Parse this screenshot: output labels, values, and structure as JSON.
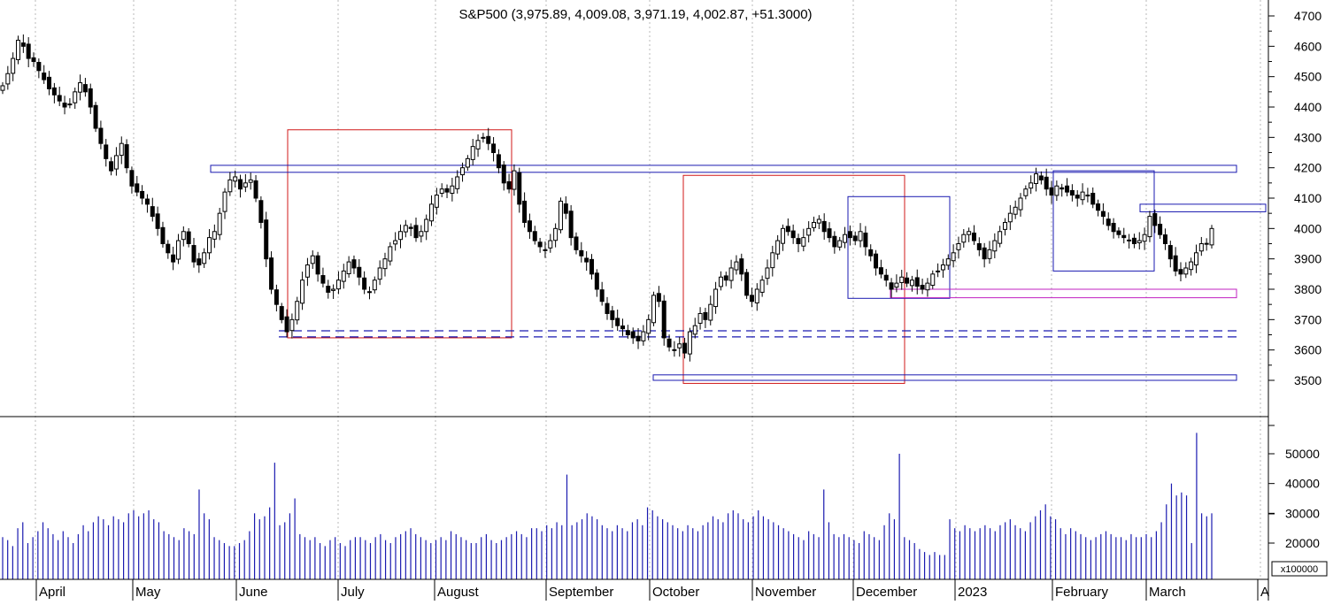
{
  "chart_data": [
    {
      "type": "candlestick",
      "title": "S&P500 (3,975.89, 4,009.08, 3,971.19, 4,002.87, +51.3000)",
      "ohlc": {
        "open": 3975.89,
        "high": 4009.08,
        "low": 3971.19,
        "close": 4002.87,
        "change": 51.3
      },
      "y_axis_side": "right",
      "ylim": [
        3400,
        4760
      ],
      "yticks": [
        "3500",
        "3600",
        "3700",
        "3800",
        "3900",
        "4000",
        "4100",
        "4200",
        "4300",
        "4400",
        "4500",
        "4600",
        "4700"
      ],
      "x_labels": [
        "April",
        "May",
        "June",
        "July",
        "August",
        "September",
        "October",
        "November",
        "December",
        "2023",
        "February",
        "March",
        "A"
      ],
      "grid": "vertical dotted",
      "closes": [
        4470,
        4510,
        4560,
        4620,
        4600,
        4560,
        4550,
        4520,
        4490,
        4460,
        4440,
        4420,
        4400,
        4410,
        4450,
        4480,
        4450,
        4400,
        4330,
        4280,
        4230,
        4190,
        4240,
        4280,
        4200,
        4140,
        4120,
        4100,
        4080,
        4040,
        4000,
        3950,
        3920,
        3890,
        3960,
        3990,
        3950,
        3890,
        3880,
        3920,
        3970,
        3990,
        4050,
        4120,
        4160,
        4170,
        4130,
        4150,
        4160,
        4100,
        4020,
        3900,
        3800,
        3750,
        3700,
        3660,
        3700,
        3760,
        3830,
        3880,
        3910,
        3850,
        3820,
        3790,
        3800,
        3830,
        3860,
        3890,
        3870,
        3840,
        3800,
        3790,
        3830,
        3870,
        3900,
        3940,
        3960,
        3990,
        4010,
        4000,
        3970,
        3990,
        4030,
        4080,
        4110,
        4130,
        4120,
        4140,
        4170,
        4200,
        4230,
        4270,
        4290,
        4300,
        4280,
        4250,
        4200,
        4150,
        4130,
        4190,
        4080,
        4020,
        3990,
        3960,
        3940,
        3930,
        3960,
        4000,
        4090,
        4050,
        3970,
        3930,
        3910,
        3890,
        3850,
        3800,
        3760,
        3720,
        3700,
        3680,
        3670,
        3650,
        3640,
        3630,
        3660,
        3700,
        3780,
        3760,
        3640,
        3610,
        3600,
        3620,
        3590,
        3660,
        3680,
        3720,
        3700,
        3750,
        3800,
        3840,
        3830,
        3870,
        3890,
        3850,
        3780,
        3760,
        3800,
        3830,
        3870,
        3920,
        3960,
        4000,
        3990,
        3970,
        3950,
        3970,
        4000,
        4020,
        4030,
        3990,
        3970,
        3940,
        3960,
        3980,
        3970,
        3960,
        3990,
        3940,
        3910,
        3870,
        3850,
        3830,
        3800,
        3820,
        3840,
        3820,
        3830,
        3810,
        3800,
        3820,
        3850,
        3860,
        3880,
        3900,
        3920,
        3950,
        3980,
        3990,
        3960,
        3930,
        3900,
        3930,
        3960,
        3990,
        4020,
        4050,
        4070,
        4100,
        4130,
        4150,
        4180,
        4160,
        4130,
        4110,
        4140,
        4130,
        4120,
        4110,
        4100,
        4120,
        4110,
        4080,
        4060,
        4040,
        4010,
        3990,
        3980,
        3970,
        3960,
        3950,
        3960,
        3980,
        4040,
        4010,
        3980,
        3950,
        3900,
        3860,
        3850,
        3870,
        3890,
        3920,
        3950,
        3950,
        4000
      ],
      "volume_scale_label": "x100000",
      "volume_ylim": [
        0,
        60000
      ],
      "volume_yticks": [
        "20000",
        "30000",
        "40000",
        "50000"
      ],
      "volume": [
        22000,
        21000,
        19000,
        25000,
        27000,
        20000,
        22000,
        24000,
        27000,
        25000,
        23000,
        21000,
        24000,
        22000,
        20000,
        23000,
        26000,
        24000,
        27000,
        29000,
        28000,
        26000,
        29000,
        28000,
        27000,
        30000,
        31000,
        29000,
        30000,
        31000,
        28000,
        27000,
        24000,
        23000,
        22000,
        21000,
        25000,
        24000,
        23000,
        38000,
        30000,
        28000,
        22000,
        21000,
        20000,
        19000,
        19000,
        20000,
        21000,
        24000,
        30000,
        28000,
        29000,
        32000,
        47000,
        26000,
        27000,
        30000,
        35000,
        23000,
        22000,
        21000,
        22000,
        20000,
        19000,
        21000,
        22000,
        20000,
        19000,
        21000,
        22000,
        22000,
        21000,
        20000,
        22000,
        23000,
        21000,
        20000,
        22000,
        23000,
        24000,
        25000,
        23000,
        22000,
        21000,
        20000,
        21000,
        22000,
        21000,
        24000,
        23000,
        22000,
        21000,
        20000,
        20000,
        22000,
        23000,
        21000,
        20000,
        21000,
        22000,
        23000,
        24000,
        23000,
        22000,
        25000,
        25000,
        24000,
        26000,
        25000,
        27000,
        26000,
        43000,
        26000,
        27000,
        28000,
        30000,
        29000,
        28000,
        26000,
        25000,
        24000,
        26000,
        25000,
        24000,
        27000,
        28000,
        26000,
        32000,
        31000,
        29000,
        28000,
        27000,
        26000,
        25000,
        24000,
        26000,
        25000,
        24000,
        26000,
        27000,
        29000,
        28000,
        27000,
        30000,
        31000,
        30000,
        28000,
        27000,
        29000,
        31000,
        29000,
        28000,
        27000,
        26000,
        25000,
        24000,
        23000,
        22000,
        21000,
        24000,
        23000,
        22000,
        38000,
        27000,
        23000,
        22000,
        23000,
        22000,
        21000,
        20000,
        24000,
        23000,
        22000,
        21000,
        26000,
        30000,
        28000,
        50000,
        22000,
        21000,
        20000,
        18000,
        17000,
        16000,
        17000,
        16000,
        16000,
        28000,
        25000,
        24000,
        26000,
        25000,
        24000,
        25000,
        26000,
        25000,
        24000,
        26000,
        27000,
        28000,
        26000,
        25000,
        24000,
        27000,
        29000,
        31000,
        33000,
        29000,
        28000,
        25000,
        23000,
        25000,
        24000,
        23000,
        22000,
        21000,
        22000,
        23000,
        24000,
        23000,
        22000,
        22000,
        21000,
        23000,
        22000,
        22000,
        23000,
        22000,
        24000,
        27000,
        33000,
        40000,
        36000,
        37000,
        36000,
        20000,
        57000,
        30000,
        29000,
        30000
      ],
      "annotations": [
        {
          "shape": "rect",
          "color": "#d01818",
          "x1": 325,
          "x2": 578,
          "y1": 4325,
          "y2": 3640
        },
        {
          "shape": "rect",
          "color": "#d01818",
          "x1": 772,
          "x2": 1022,
          "y1": 4175,
          "y2": 3490
        },
        {
          "shape": "rect",
          "color": "#1a1ab0",
          "x1": 238,
          "x2": 1397,
          "y1": 4208,
          "y2": 4185
        },
        {
          "shape": "rect",
          "color": "#1a1ab0",
          "x1": 738,
          "x2": 1397,
          "y1": 3518,
          "y2": 3500
        },
        {
          "shape": "rect",
          "color": "#1a1ab0",
          "x1": 958,
          "x2": 1073,
          "y1": 4105,
          "y2": 3770
        },
        {
          "shape": "rect",
          "color": "#1a1ab0",
          "x1": 1190,
          "x2": 1304,
          "y1": 4190,
          "y2": 3860
        },
        {
          "shape": "rect",
          "color": "#1a1ab0",
          "x1": 1288,
          "x2": 1430,
          "y1": 4080,
          "y2": 4055
        },
        {
          "shape": "rect",
          "color": "#c020c0",
          "x1": 1006,
          "x2": 1397,
          "y1": 3800,
          "y2": 3772
        },
        {
          "shape": "dash",
          "color": "#1a1ab0",
          "x1": 315,
          "x2": 1397,
          "y": 3663
        },
        {
          "shape": "dash",
          "color": "#1a1ab0",
          "x1": 315,
          "x2": 1397,
          "y": 3643
        }
      ]
    }
  ]
}
